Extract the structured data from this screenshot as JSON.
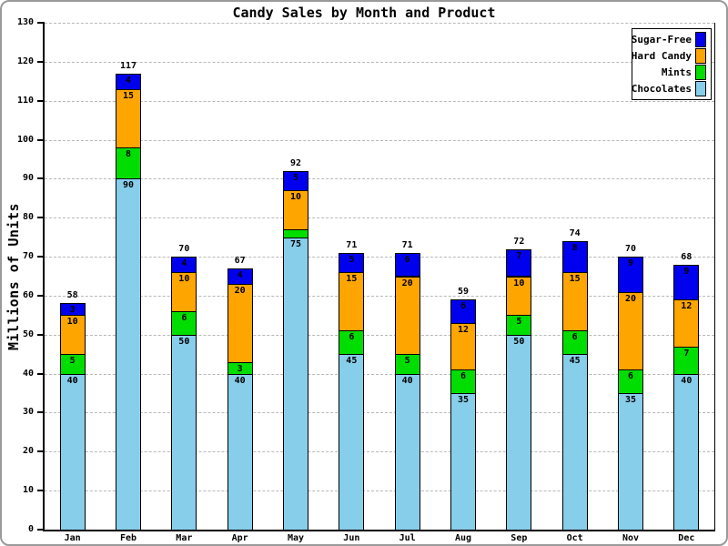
{
  "chart_data": {
    "type": "bar",
    "stacked": true,
    "title": "Candy Sales by Month and Product",
    "xlabel": "",
    "ylabel": "Millions of Units",
    "ylim": [
      0,
      130
    ],
    "ytick_step": 10,
    "grid": "horizontal-dashed",
    "legend_position": "top-right",
    "categories": [
      "Jan",
      "Feb",
      "Mar",
      "Apr",
      "May",
      "Jun",
      "Jul",
      "Aug",
      "Sep",
      "Oct",
      "Nov",
      "Dec"
    ],
    "series": [
      {
        "name": "Chocolates",
        "color": "#87ceeb",
        "values": [
          40,
          90,
          50,
          40,
          75,
          45,
          40,
          35,
          50,
          45,
          35,
          40
        ]
      },
      {
        "name": "Mints",
        "color": "#00dd00",
        "values": [
          5,
          8,
          6,
          3,
          2,
          6,
          5,
          6,
          5,
          6,
          6,
          7
        ]
      },
      {
        "name": "Hard Candy",
        "color": "#ffa500",
        "values": [
          10,
          15,
          10,
          20,
          10,
          15,
          20,
          12,
          10,
          15,
          20,
          12
        ]
      },
      {
        "name": "Sugar-Free",
        "color": "#0000ee",
        "values": [
          3,
          4,
          4,
          4,
          5,
          5,
          6,
          6,
          7,
          8,
          9,
          9
        ]
      }
    ],
    "totals": [
      58,
      117,
      70,
      67,
      92,
      71,
      71,
      59,
      72,
      74,
      70,
      68
    ],
    "legend_order": [
      "Sugar-Free",
      "Hard Candy",
      "Mints",
      "Chocolates"
    ],
    "colors": {
      "sugar_free": "#0000ee",
      "hard_candy": "#ffa500",
      "mints": "#00dd00",
      "chocolates": "#87ceeb",
      "gridline": "#b8b8b8",
      "axis": "#000000",
      "frame_border": "#9a9a9a"
    }
  }
}
